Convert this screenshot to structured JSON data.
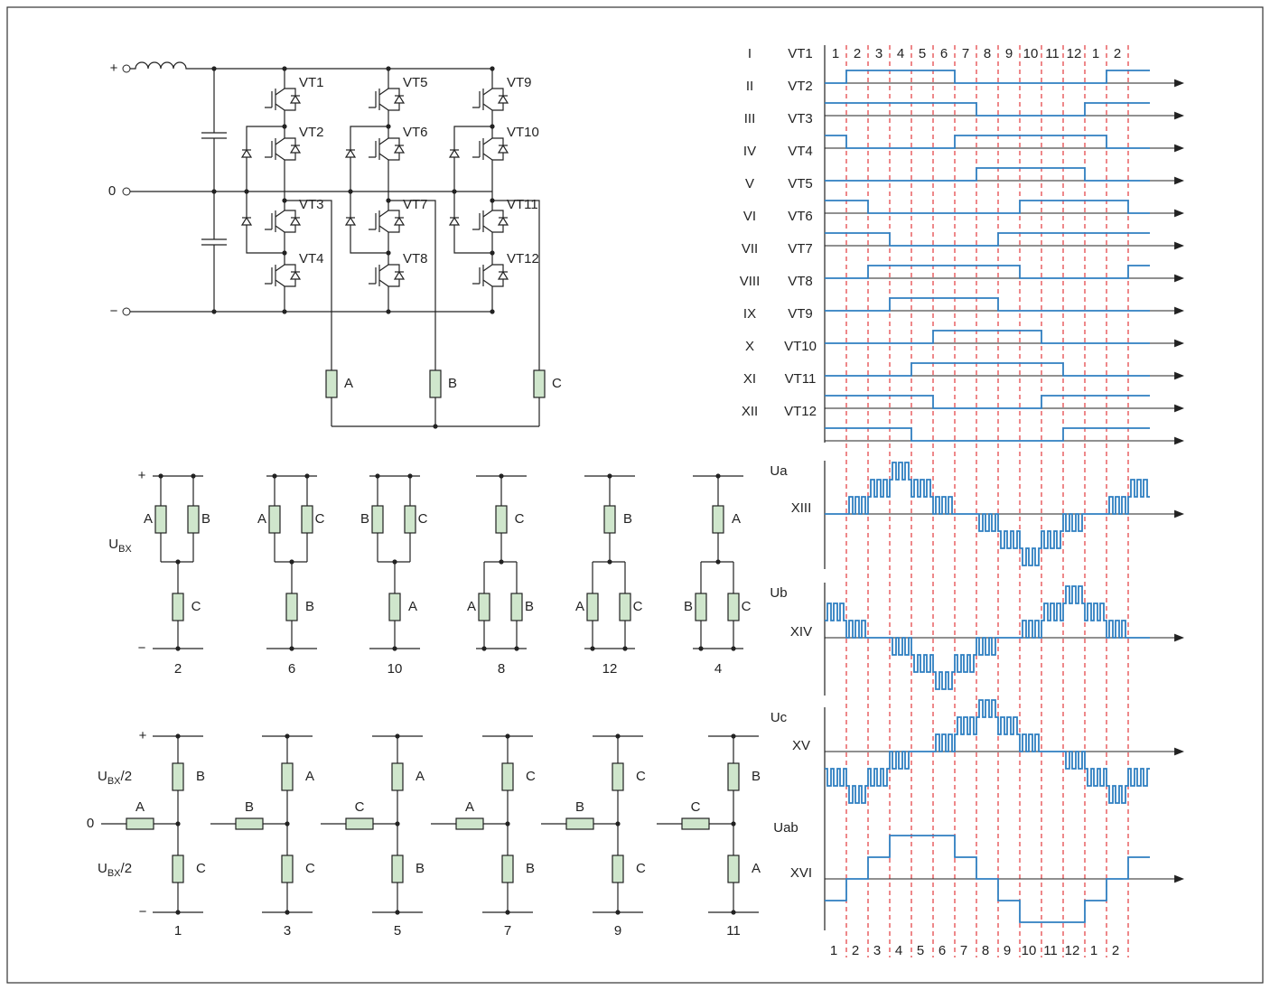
{
  "circuit": {
    "plus": "+",
    "zero": "0",
    "minus": "−",
    "switches": [
      "VT1",
      "VT2",
      "VT3",
      "VT4",
      "VT5",
      "VT6",
      "VT7",
      "VT8",
      "VT9",
      "VT10",
      "VT11",
      "VT12"
    ],
    "loads": [
      "A",
      "B",
      "C"
    ]
  },
  "star_configs": {
    "plus": "+",
    "minus": "−",
    "input_voltage": {
      "symbol": "U",
      "subscript": "BX"
    },
    "items": [
      {
        "upper": [
          "A",
          "B"
        ],
        "lower": [
          "C"
        ],
        "caption": "2"
      },
      {
        "upper": [
          "A",
          "C"
        ],
        "lower": [
          "B"
        ],
        "caption": "6"
      },
      {
        "upper": [
          "B",
          "C"
        ],
        "lower": [
          "A"
        ],
        "caption": "10"
      },
      {
        "upper": [
          "C"
        ],
        "lower": [
          "A",
          "B"
        ],
        "caption": "8"
      },
      {
        "upper": [
          "B"
        ],
        "lower": [
          "A",
          "C"
        ],
        "caption": "12"
      },
      {
        "upper": [
          "A"
        ],
        "lower": [
          "B",
          "C"
        ],
        "caption": "4"
      }
    ]
  },
  "tee_configs": {
    "plus": "+",
    "minus": "−",
    "zero": "0",
    "upper_voltage": {
      "symbol": "U",
      "subscript": "BX",
      "suffix": "/2"
    },
    "lower_voltage": {
      "symbol": "U",
      "subscript": "BX",
      "suffix": "/2"
    },
    "items": [
      {
        "side": "A",
        "upper": "B",
        "lower": "C",
        "caption": "1"
      },
      {
        "side": "B",
        "upper": "A",
        "lower": "C",
        "caption": "3"
      },
      {
        "side": "C",
        "upper": "A",
        "lower": "B",
        "caption": "5"
      },
      {
        "side": "A",
        "upper": "C",
        "lower": "B",
        "caption": "7"
      },
      {
        "side": "B",
        "upper": "C",
        "lower": "C",
        "caption": "9"
      },
      {
        "side": "C",
        "upper": "B",
        "lower": "A",
        "caption": "11"
      }
    ]
  },
  "timing": {
    "rows": [
      {
        "numeral": "I",
        "switch": "VT1"
      },
      {
        "numeral": "II",
        "switch": "VT2"
      },
      {
        "numeral": "III",
        "switch": "VT3"
      },
      {
        "numeral": "IV",
        "switch": "VT4"
      },
      {
        "numeral": "V",
        "switch": "VT5"
      },
      {
        "numeral": "VI",
        "switch": "VT6"
      },
      {
        "numeral": "VII",
        "switch": "VT7"
      },
      {
        "numeral": "VIII",
        "switch": "VT8"
      },
      {
        "numeral": "IX",
        "switch": "VT9"
      },
      {
        "numeral": "X",
        "switch": "VT10"
      },
      {
        "numeral": "XI",
        "switch": "VT11"
      },
      {
        "numeral": "XII",
        "switch": "VT12"
      }
    ],
    "waveforms": [
      {
        "label": "Ua",
        "numeral": "XIII"
      },
      {
        "label": "Ub",
        "numeral": "XIV"
      },
      {
        "label": "Uc",
        "numeral": "XV"
      },
      {
        "label": "Uab",
        "numeral": "XVI"
      }
    ],
    "sectors_top": [
      1,
      2,
      3,
      4,
      5,
      6,
      7,
      8,
      9,
      10,
      11,
      12,
      1,
      2
    ],
    "sectors_bottom": [
      1,
      2,
      3,
      4,
      5,
      6,
      7,
      8,
      9,
      10,
      11,
      12,
      1,
      2
    ]
  }
}
